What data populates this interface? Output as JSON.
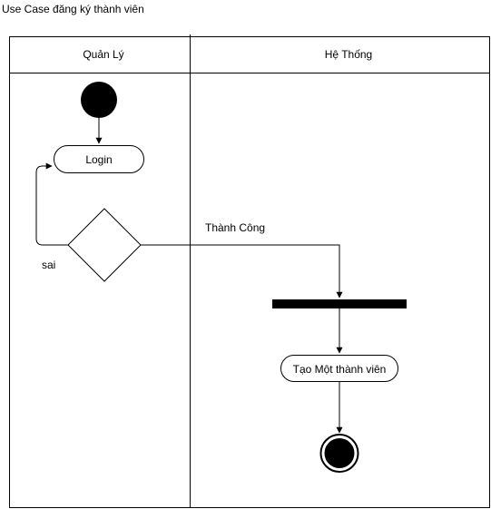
{
  "title": "Use Case đăng ký thành viên",
  "swimlanes": [
    {
      "label": "Quản Lý"
    },
    {
      "label": "Hệ Thống"
    }
  ],
  "nodes": {
    "login": {
      "label": "Login"
    },
    "create_member": {
      "label": "Tạo Một thành viên"
    }
  },
  "edges": {
    "success": {
      "label": "Thành Công"
    },
    "fail": {
      "label": "sai"
    }
  }
}
